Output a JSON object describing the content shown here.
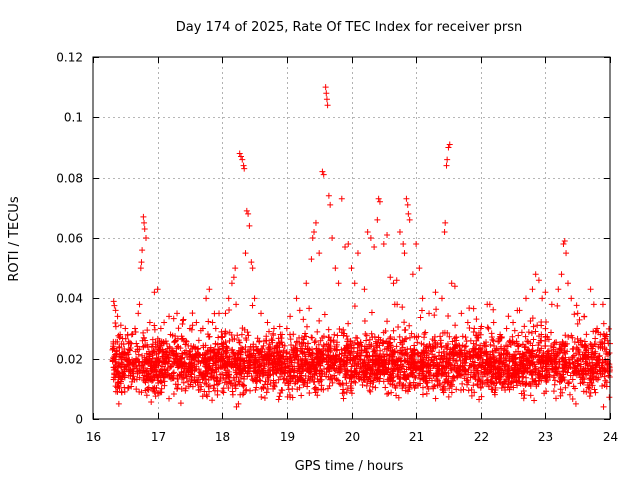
{
  "chart_data": {
    "type": "scatter",
    "title": "Day 174 of 2025, Rate Of TEC Index for receiver prsn",
    "xlabel": "GPS time / hours",
    "ylabel": "ROTI / TECUs",
    "xlim": [
      16,
      24
    ],
    "ylim": [
      0,
      0.12
    ],
    "xticks": [
      16,
      17,
      18,
      19,
      20,
      21,
      22,
      23,
      24
    ],
    "xtick_labels": [
      "16",
      "17",
      "18",
      "19",
      "20",
      "21",
      "22",
      "23",
      "24"
    ],
    "yticks": [
      0,
      0.02,
      0.04,
      0.06,
      0.08,
      0.1,
      0.12
    ],
    "ytick_labels": [
      "0",
      "0.02",
      "0.04",
      "0.06",
      "0.08",
      "0.1",
      "0.12"
    ],
    "grid": true,
    "marker": "+",
    "color": "#ff0000",
    "series": [
      {
        "name": "ROTI",
        "points": [
          [
            16.32,
            0.039
          ],
          [
            16.35,
            0.036
          ],
          [
            16.38,
            0.034
          ],
          [
            16.4,
            0.005
          ],
          [
            16.42,
            0.028
          ],
          [
            16.45,
            0.022
          ],
          [
            16.5,
            0.03
          ],
          [
            16.55,
            0.025
          ],
          [
            16.6,
            0.028
          ],
          [
            16.65,
            0.03
          ],
          [
            16.7,
            0.035
          ],
          [
            16.72,
            0.038
          ],
          [
            16.74,
            0.05
          ],
          [
            16.75,
            0.052
          ],
          [
            16.76,
            0.056
          ],
          [
            16.78,
            0.067
          ],
          [
            16.79,
            0.065
          ],
          [
            16.8,
            0.063
          ],
          [
            16.82,
            0.06
          ],
          [
            16.88,
            0.032
          ],
          [
            16.95,
            0.042
          ],
          [
            17.0,
            0.043
          ],
          [
            17.05,
            0.03
          ],
          [
            17.1,
            0.032
          ],
          [
            17.2,
            0.028
          ],
          [
            17.3,
            0.035
          ],
          [
            17.4,
            0.033
          ],
          [
            17.5,
            0.03
          ],
          [
            17.6,
            0.032
          ],
          [
            17.7,
            0.03
          ],
          [
            17.75,
            0.04
          ],
          [
            17.8,
            0.043
          ],
          [
            17.85,
            0.032
          ],
          [
            17.9,
            0.03
          ],
          [
            17.95,
            0.035
          ],
          [
            18.05,
            0.035
          ],
          [
            18.1,
            0.04
          ],
          [
            18.15,
            0.045
          ],
          [
            18.18,
            0.047
          ],
          [
            18.2,
            0.05
          ],
          [
            18.22,
            0.004
          ],
          [
            18.25,
            0.005
          ],
          [
            18.27,
            0.088
          ],
          [
            18.29,
            0.087
          ],
          [
            18.31,
            0.086
          ],
          [
            18.33,
            0.084
          ],
          [
            18.34,
            0.083
          ],
          [
            18.36,
            0.055
          ],
          [
            18.38,
            0.069
          ],
          [
            18.4,
            0.068
          ],
          [
            18.42,
            0.064
          ],
          [
            18.45,
            0.052
          ],
          [
            18.47,
            0.05
          ],
          [
            18.5,
            0.04
          ],
          [
            18.6,
            0.035
          ],
          [
            18.7,
            0.032
          ],
          [
            18.8,
            0.03
          ],
          [
            18.9,
            0.028
          ],
          [
            19.0,
            0.03
          ],
          [
            19.05,
            0.034
          ],
          [
            19.15,
            0.04
          ],
          [
            19.2,
            0.036
          ],
          [
            19.3,
            0.045
          ],
          [
            19.38,
            0.053
          ],
          [
            19.4,
            0.06
          ],
          [
            19.42,
            0.062
          ],
          [
            19.45,
            0.065
          ],
          [
            19.5,
            0.055
          ],
          [
            19.55,
            0.082
          ],
          [
            19.57,
            0.081
          ],
          [
            19.6,
            0.11
          ],
          [
            19.61,
            0.108
          ],
          [
            19.62,
            0.106
          ],
          [
            19.63,
            0.104
          ],
          [
            19.65,
            0.074
          ],
          [
            19.67,
            0.071
          ],
          [
            19.7,
            0.06
          ],
          [
            19.75,
            0.05
          ],
          [
            19.8,
            0.045
          ],
          [
            19.85,
            0.073
          ],
          [
            19.9,
            0.057
          ],
          [
            19.95,
            0.058
          ],
          [
            20.0,
            0.05
          ],
          [
            20.05,
            0.045
          ],
          [
            20.1,
            0.055
          ],
          [
            20.2,
            0.043
          ],
          [
            20.25,
            0.062
          ],
          [
            20.3,
            0.06
          ],
          [
            20.35,
            0.057
          ],
          [
            20.4,
            0.066
          ],
          [
            20.42,
            0.073
          ],
          [
            20.44,
            0.072
          ],
          [
            20.5,
            0.058
          ],
          [
            20.55,
            0.061
          ],
          [
            20.6,
            0.047
          ],
          [
            20.65,
            0.045
          ],
          [
            20.7,
            0.046
          ],
          [
            20.75,
            0.062
          ],
          [
            20.8,
            0.058
          ],
          [
            20.82,
            0.055
          ],
          [
            20.85,
            0.073
          ],
          [
            20.87,
            0.071
          ],
          [
            20.88,
            0.068
          ],
          [
            20.9,
            0.066
          ],
          [
            20.95,
            0.048
          ],
          [
            21.0,
            0.058
          ],
          [
            21.05,
            0.05
          ],
          [
            21.1,
            0.04
          ],
          [
            21.2,
            0.035
          ],
          [
            21.3,
            0.042
          ],
          [
            21.4,
            0.04
          ],
          [
            21.44,
            0.062
          ],
          [
            21.45,
            0.065
          ],
          [
            21.47,
            0.084
          ],
          [
            21.48,
            0.086
          ],
          [
            21.5,
            0.09
          ],
          [
            21.52,
            0.091
          ],
          [
            21.55,
            0.045
          ],
          [
            21.6,
            0.044
          ],
          [
            21.7,
            0.035
          ],
          [
            21.8,
            0.032
          ],
          [
            21.9,
            0.03
          ],
          [
            22.0,
            0.03
          ],
          [
            22.1,
            0.038
          ],
          [
            22.2,
            0.032
          ],
          [
            22.3,
            0.028
          ],
          [
            22.4,
            0.03
          ],
          [
            22.5,
            0.032
          ],
          [
            22.6,
            0.036
          ],
          [
            22.7,
            0.04
          ],
          [
            22.8,
            0.043
          ],
          [
            22.85,
            0.048
          ],
          [
            22.9,
            0.046
          ],
          [
            22.95,
            0.04
          ],
          [
            23.0,
            0.042
          ],
          [
            23.1,
            0.038
          ],
          [
            23.2,
            0.043
          ],
          [
            23.25,
            0.048
          ],
          [
            23.28,
            0.058
          ],
          [
            23.3,
            0.059
          ],
          [
            23.32,
            0.055
          ],
          [
            23.35,
            0.045
          ],
          [
            23.4,
            0.04
          ],
          [
            23.5,
            0.035
          ],
          [
            23.6,
            0.034
          ],
          [
            23.7,
            0.043
          ],
          [
            23.75,
            0.038
          ],
          [
            23.8,
            0.03
          ],
          [
            23.85,
            0.028
          ],
          [
            23.9,
            0.004
          ],
          [
            23.95,
            0.028
          ],
          [
            24.0,
            0.025
          ]
        ],
        "baseline_band": {
          "x_start": 16.3,
          "x_end": 24.0,
          "y_low": 0.005,
          "y_high": 0.03,
          "typical": 0.018,
          "estimated_count": 3600
        }
      }
    ]
  }
}
